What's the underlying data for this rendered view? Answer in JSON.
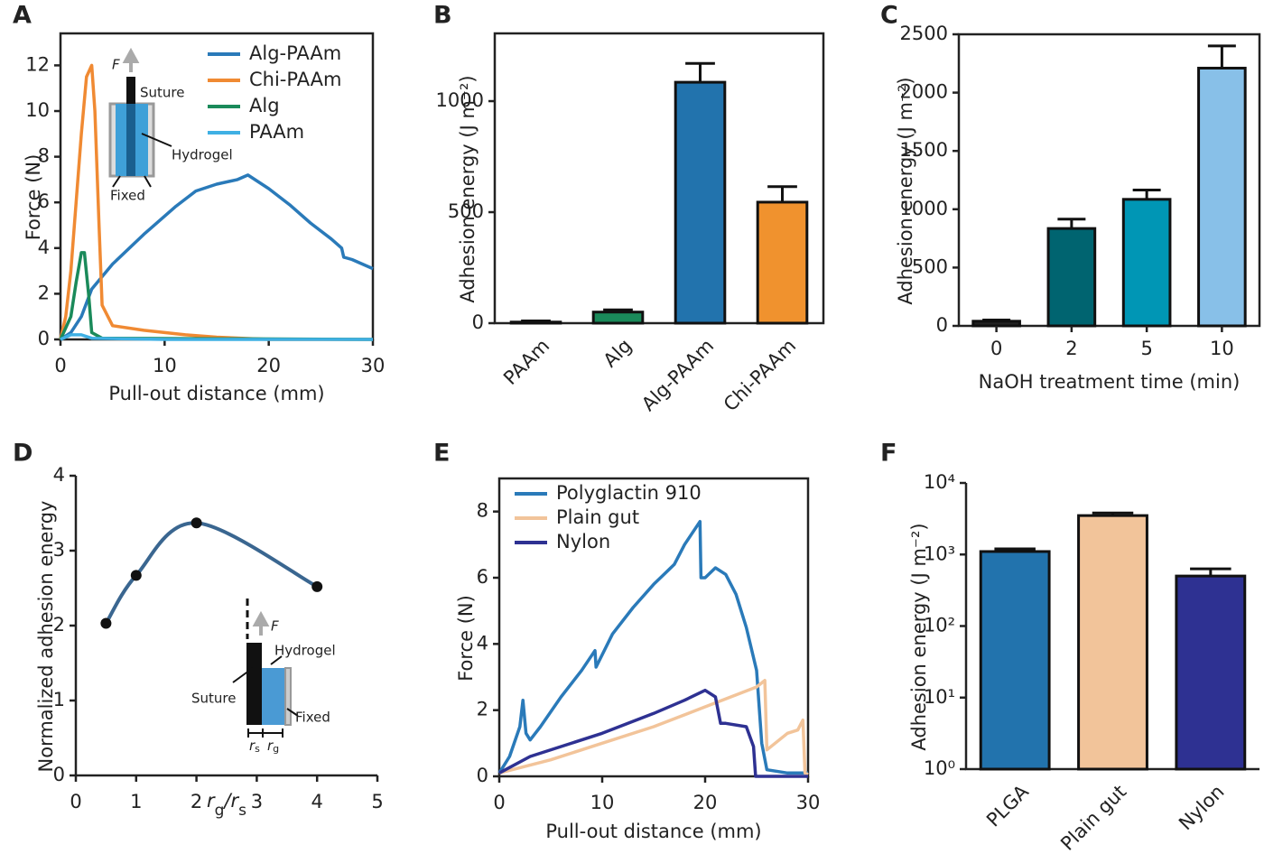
{
  "chart_data": [
    {
      "type": "line",
      "panel_label": "A",
      "xlabel": "Pull-out distance (mm)",
      "ylabel": "Force (N)",
      "xlim": [
        0,
        30
      ],
      "xticks": [
        0,
        10,
        20,
        30
      ],
      "ylim": [
        0,
        13.4
      ],
      "yticks": [
        0,
        2,
        4,
        6,
        8,
        10,
        12
      ],
      "annotations": [
        "F",
        "Suture",
        "Hydrogel",
        "Fixed"
      ],
      "series": [
        {
          "name": "Alg-PAAm",
          "color": "#2a7ab9",
          "x": [
            0,
            1,
            2,
            3,
            5,
            8,
            11,
            13,
            15,
            17,
            18,
            20,
            22,
            24,
            26,
            27,
            27.2,
            28,
            30
          ],
          "values": [
            0,
            0.3,
            1,
            2.2,
            3.3,
            4.6,
            5.8,
            6.5,
            6.8,
            7,
            7.2,
            6.6,
            5.9,
            5.1,
            4.4,
            4.0,
            3.6,
            3.5,
            3.1
          ]
        },
        {
          "name": "Chi-PAAm",
          "color": "#f08a33",
          "x": [
            0,
            0.5,
            1,
            1.5,
            2,
            2.5,
            3,
            3.3,
            3.7,
            4,
            5,
            8,
            12,
            15,
            20,
            30
          ],
          "values": [
            0,
            1,
            3,
            6,
            9,
            11.5,
            12,
            10,
            5,
            1.5,
            0.6,
            0.4,
            0.2,
            0.1,
            0,
            0
          ]
        },
        {
          "name": "Alg",
          "color": "#1a8a5a",
          "x": [
            0,
            1,
            1.5,
            2,
            2.3,
            2.7,
            3,
            4,
            30
          ],
          "values": [
            0,
            1,
            2.5,
            3.8,
            3.8,
            2,
            0.3,
            0.05,
            0
          ]
        },
        {
          "name": "PAAm",
          "color": "#3fb0e4",
          "x": [
            0,
            1,
            2,
            3,
            10,
            30
          ],
          "values": [
            0,
            0.2,
            0.2,
            0.05,
            0,
            0
          ]
        }
      ]
    },
    {
      "type": "bar",
      "panel_label": "B",
      "ylabel": "Adhesion energy (J m⁻²)",
      "categories": [
        "PAAm",
        "Alg",
        "Alg-PAAm",
        "Chi-PAAm"
      ],
      "values": [
        5,
        50,
        1085,
        545
      ],
      "errors": [
        5,
        10,
        85,
        70
      ],
      "colors": [
        "#3fb0e4",
        "#1a8a5a",
        "#2273ad",
        "#f0922e"
      ],
      "ylim": [
        0,
        1305
      ],
      "yticks": [
        0,
        500,
        1000
      ]
    },
    {
      "type": "bar",
      "panel_label": "C",
      "xlabel": "NaOH treatment time (min)",
      "ylabel": "Adhesion energy (J m⁻²)",
      "categories": [
        "0",
        "2",
        "5",
        "10"
      ],
      "values": [
        40,
        835,
        1085,
        2210
      ],
      "errors": [
        10,
        80,
        80,
        190
      ],
      "colors": [
        "#222222",
        "#006470",
        "#0096b5",
        "#88c0e8"
      ],
      "ylim": [
        0,
        2500
      ],
      "yticks": [
        0,
        500,
        1000,
        1500,
        2000,
        2500
      ]
    },
    {
      "type": "smooth",
      "panel_label": "D",
      "ylabel": "Normalized adhesion energy",
      "xlabel": [
        {
          "text": "r"
        },
        {
          "text": "g",
          "sub": true
        },
        {
          "text": "/"
        },
        {
          "text": "r"
        },
        {
          "text": "s",
          "sub": true
        }
      ],
      "x": [
        0.5,
        1,
        2,
        4
      ],
      "values": [
        2.03,
        2.67,
        3.37,
        2.52
      ],
      "color": "#3a6690",
      "xlim": [
        0,
        5
      ],
      "xticks": [
        0,
        1,
        2,
        3,
        4,
        5
      ],
      "ylim": [
        0,
        4
      ],
      "yticks": [
        0,
        1,
        2,
        3,
        4
      ],
      "annotations": [
        "F",
        "Hydrogel",
        "Suture",
        "Fixed"
      ],
      "dimensions": [
        [
          "r",
          "s"
        ],
        [
          "r",
          "g"
        ]
      ]
    },
    {
      "type": "line",
      "panel_label": "E",
      "xlabel": "Pull-out distance (mm)",
      "ylabel": "Force (N)",
      "xlim": [
        0,
        30
      ],
      "xticks": [
        0,
        10,
        20,
        30
      ],
      "ylim": [
        0,
        9
      ],
      "yticks": [
        0,
        2,
        4,
        6,
        8
      ],
      "series": [
        {
          "name": "Polyglactin 910",
          "color": "#2a7ab9",
          "x": [
            0,
            1,
            2,
            2.3,
            2.6,
            3,
            4,
            6,
            8,
            9.3,
            9.4,
            11,
            13,
            15,
            17,
            18,
            19.5,
            19.6,
            20,
            21,
            22,
            23,
            24,
            25,
            25.5,
            26,
            28,
            30
          ],
          "values": [
            0.1,
            0.6,
            1.5,
            2.3,
            1.3,
            1.1,
            1.5,
            2.4,
            3.2,
            3.8,
            3.3,
            4.3,
            5.1,
            5.8,
            6.4,
            7,
            7.7,
            6.0,
            6.0,
            6.3,
            6.1,
            5.5,
            4.5,
            3.2,
            1.0,
            0.2,
            0.1,
            0.1
          ]
        },
        {
          "name": "Plain gut",
          "color": "#f2c49a",
          "x": [
            0,
            5,
            10,
            15,
            20,
            25,
            25.8,
            26,
            28,
            29,
            29.5,
            29.7,
            30
          ],
          "values": [
            0.1,
            0.5,
            1.0,
            1.5,
            2.1,
            2.7,
            2.9,
            0.8,
            1.3,
            1.4,
            1.7,
            0.1,
            0.05
          ]
        },
        {
          "name": "Nylon",
          "color": "#2e3192",
          "x": [
            0,
            3,
            6,
            10,
            15,
            18,
            20,
            21,
            21.5,
            22,
            24,
            24.7,
            24.9,
            30
          ],
          "values": [
            0.1,
            0.6,
            0.9,
            1.3,
            1.9,
            2.3,
            2.6,
            2.4,
            1.6,
            1.6,
            1.5,
            0.9,
            0,
            0
          ]
        }
      ]
    },
    {
      "type": "bar",
      "panel_label": "F",
      "ylabel": "Adhesion energy (J m⁻²)",
      "log_scale": true,
      "categories": [
        "PLGA",
        "Plain gut",
        "Nylon"
      ],
      "values": [
        1100,
        3500,
        500
      ],
      "errors": [
        100,
        300,
        130
      ],
      "colors": [
        "#2273ad",
        "#f2c49a",
        "#2e3192"
      ],
      "ylim": [
        1,
        10000
      ],
      "yticks": [
        {
          "value": 1,
          "label": "10⁰"
        },
        {
          "value": 10,
          "label": "10¹"
        },
        {
          "value": 100,
          "label": "10²"
        },
        {
          "value": 1000,
          "label": "10³"
        },
        {
          "value": 10000,
          "label": "10⁴"
        }
      ]
    }
  ]
}
